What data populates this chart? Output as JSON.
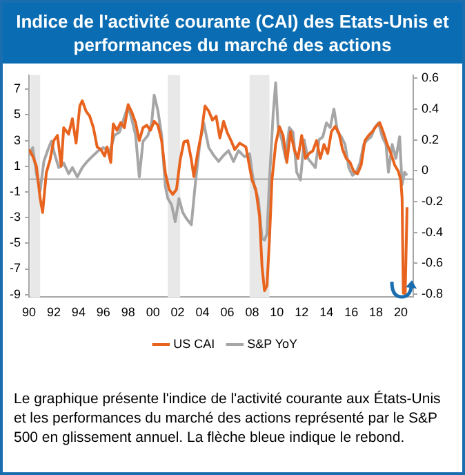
{
  "chart_data": {
    "type": "line",
    "title": "Indice de l'activité courante (CAI) des Etats-Unis et performances du marché des actions",
    "annotations": [
      "Le graphique présente l'indice de l'activité courante aux États-Unis et les performances du marché des actions représenté par le S&P 500 en glissement annuel. La flèche bleue indique le rebond."
    ],
    "xlim": [
      1990,
      2021
    ],
    "xticks": [
      {
        "value": 1990,
        "label": "90"
      },
      {
        "value": 1992,
        "label": "92"
      },
      {
        "value": 1994,
        "label": "94"
      },
      {
        "value": 1996,
        "label": "96"
      },
      {
        "value": 1998,
        "label": "98"
      },
      {
        "value": 2000,
        "label": "00"
      },
      {
        "value": 2002,
        "label": "02"
      },
      {
        "value": 2004,
        "label": "04"
      },
      {
        "value": 2006,
        "label": "06"
      },
      {
        "value": 2008,
        "label": "08"
      },
      {
        "value": 2010,
        "label": "10"
      },
      {
        "value": 2012,
        "label": "12"
      },
      {
        "value": 2014,
        "label": "14"
      },
      {
        "value": 2016,
        "label": "16"
      },
      {
        "value": 2018,
        "label": "18"
      },
      {
        "value": 2020,
        "label": "20"
      }
    ],
    "ylim": [
      -9.2,
      8.1
    ],
    "yticks": [
      -9,
      -7,
      -5,
      -3,
      -1,
      1,
      3,
      5,
      7
    ],
    "y2lim": [
      -0.82,
      0.62
    ],
    "y2ticks": [
      -0.8,
      -0.6,
      -0.4,
      -0.2,
      0,
      0.2,
      0.4,
      0.6
    ],
    "legend": "bottom",
    "grid": false,
    "ref_lines": [
      {
        "axis": "y",
        "value": 0,
        "color": "#a6a6a6"
      }
    ],
    "bands": [
      {
        "axis": "x",
        "from": 1990.1,
        "to": 1990.9,
        "color": "#e8e8e8"
      },
      {
        "axis": "x",
        "from": 2001.2,
        "to": 2002.2,
        "color": "#e8e8e8"
      },
      {
        "axis": "x",
        "from": 2007.8,
        "to": 2009.4,
        "color": "#e8e8e8"
      }
    ],
    "series": [
      {
        "name": "US CAI",
        "color": "#e8641e",
        "axis": "y",
        "x": [
          1990.0,
          1990.3,
          1990.6,
          1990.9,
          1991.1,
          1991.4,
          1991.7,
          1992.0,
          1992.3,
          1992.6,
          1992.8,
          1993.2,
          1993.5,
          1993.8,
          1994.1,
          1994.3,
          1994.6,
          1994.9,
          1995.2,
          1995.5,
          1995.8,
          1996.1,
          1996.3,
          1996.6,
          1996.8,
          1997.1,
          1997.4,
          1997.7,
          1998.0,
          1998.3,
          1998.6,
          1998.9,
          1999.2,
          1999.5,
          1999.8,
          2000.1,
          2000.4,
          2000.7,
          2001.0,
          2001.3,
          2001.6,
          2001.9,
          2002.2,
          2002.5,
          2002.8,
          2003.1,
          2003.3,
          2003.6,
          2003.9,
          2004.2,
          2004.5,
          2004.8,
          2005.1,
          2005.4,
          2005.7,
          2006.0,
          2006.3,
          2006.6,
          2007.0,
          2007.5,
          2008.0,
          2008.3,
          2008.6,
          2008.8,
          2009.0,
          2009.2,
          2009.4,
          2009.6,
          2009.9,
          2010.2,
          2010.5,
          2010.8,
          2011.1,
          2011.4,
          2011.7,
          2012.0,
          2012.3,
          2012.6,
          2012.9,
          2013.2,
          2013.5,
          2013.8,
          2014.1,
          2014.4,
          2014.7,
          2015.0,
          2015.3,
          2015.6,
          2015.9,
          2016.2,
          2016.5,
          2016.8,
          2017.1,
          2017.4,
          2017.7,
          2018.0,
          2018.3,
          2018.6,
          2018.9,
          2019.2,
          2019.5,
          2019.8,
          2020.0,
          2020.1,
          2020.2,
          2020.35,
          2020.5
        ],
        "values": [
          2.3,
          1.8,
          1.0,
          -1.5,
          -2.6,
          0.5,
          1.5,
          3.0,
          3.4,
          1.0,
          4.0,
          3.5,
          4.7,
          2.8,
          5.7,
          6.1,
          5.3,
          4.9,
          4.0,
          2.5,
          2.3,
          1.8,
          2.5,
          1.3,
          4.3,
          3.8,
          4.4,
          4.0,
          5.8,
          5.2,
          4.4,
          3.0,
          4.0,
          4.2,
          3.8,
          4.5,
          4.2,
          3.0,
          0.5,
          -0.8,
          -1.2,
          -0.8,
          1.5,
          2.9,
          3.0,
          1.5,
          0.2,
          2.0,
          3.5,
          5.7,
          5.3,
          4.6,
          4.9,
          3.2,
          4.5,
          3.6,
          3.0,
          2.3,
          2.8,
          2.5,
          -0.1,
          -0.8,
          -2.9,
          -6.8,
          -8.7,
          -8.3,
          -4.7,
          -0.1,
          2.7,
          4.1,
          3.4,
          1.3,
          3.7,
          2.3,
          1.6,
          3.4,
          1.6,
          2.0,
          2.2,
          3.0,
          1.6,
          2.7,
          2.0,
          3.7,
          4.1,
          3.6,
          2.3,
          1.6,
          1.3,
          0.6,
          0.4,
          1.1,
          3.0,
          3.4,
          3.7,
          4.1,
          4.4,
          3.6,
          2.7,
          2.0,
          1.1,
          0.6,
          -0.1,
          -1.5,
          -8.9,
          -8.9,
          -2.2
        ]
      },
      {
        "name": "S&P YoY",
        "color": "#a6a6a6",
        "axis": "y2",
        "x": [
          1990.0,
          1990.3,
          1990.6,
          1990.9,
          1991.2,
          1991.5,
          1991.8,
          1992.1,
          1992.4,
          1992.8,
          1993.2,
          1993.5,
          1993.9,
          1994.3,
          1994.7,
          1995.2,
          1995.6,
          1996.0,
          1996.5,
          1996.9,
          1997.3,
          1997.7,
          1998.0,
          1998.3,
          1998.6,
          1998.9,
          1999.2,
          1999.6,
          1999.9,
          2000.1,
          2000.4,
          2000.7,
          2001.0,
          2001.2,
          2001.5,
          2001.8,
          2002.1,
          2002.4,
          2002.7,
          2003.1,
          2003.4,
          2003.8,
          2004.1,
          2004.5,
          2004.9,
          2005.3,
          2005.7,
          2006.1,
          2006.5,
          2006.9,
          2007.4,
          2007.8,
          2008.0,
          2008.2,
          2008.5,
          2008.8,
          2009.0,
          2009.2,
          2009.4,
          2009.7,
          2009.9,
          2010.1,
          2010.4,
          2010.7,
          2011.0,
          2011.3,
          2011.6,
          2011.9,
          2012.2,
          2012.5,
          2012.8,
          2013.1,
          2013.4,
          2013.7,
          2014.0,
          2014.3,
          2014.6,
          2014.9,
          2015.2,
          2015.5,
          2015.8,
          2016.1,
          2016.4,
          2016.7,
          2017.0,
          2017.3,
          2017.6,
          2017.9,
          2018.2,
          2018.5,
          2018.8,
          2019.0,
          2019.3,
          2019.6,
          2019.9,
          2020.1,
          2020.3,
          2020.5
        ],
        "values": [
          0.1,
          0.15,
          -0.02,
          -0.13,
          0.06,
          0.13,
          0.19,
          0.1,
          0.02,
          0.05,
          -0.02,
          0.02,
          -0.04,
          0.02,
          0.06,
          0.1,
          0.13,
          0.15,
          0.12,
          0.23,
          0.25,
          0.35,
          0.42,
          0.33,
          0.23,
          -0.04,
          0.19,
          0.23,
          0.31,
          0.49,
          0.39,
          0.23,
          -0.1,
          -0.18,
          -0.22,
          -0.33,
          -0.18,
          -0.27,
          -0.31,
          -0.35,
          -0.1,
          0.19,
          0.31,
          0.15,
          0.1,
          0.06,
          0.1,
          0.13,
          0.06,
          0.13,
          0.09,
          0.11,
          -0.01,
          -0.11,
          -0.18,
          -0.44,
          -0.45,
          -0.41,
          -0.06,
          0.37,
          0.57,
          0.28,
          0.2,
          0.08,
          0.28,
          0.25,
          -0.01,
          -0.06,
          0.2,
          0.08,
          0.05,
          0.02,
          0.2,
          0.22,
          0.31,
          0.28,
          0.4,
          0.25,
          0.22,
          0.17,
          0.02,
          -0.03,
          -0.01,
          0.05,
          0.17,
          0.2,
          0.22,
          0.28,
          0.31,
          0.22,
          0.17,
          -0.01,
          0.17,
          0.08,
          0.22,
          -0.09,
          -0.01,
          -0.03
        ]
      }
    ]
  }
}
